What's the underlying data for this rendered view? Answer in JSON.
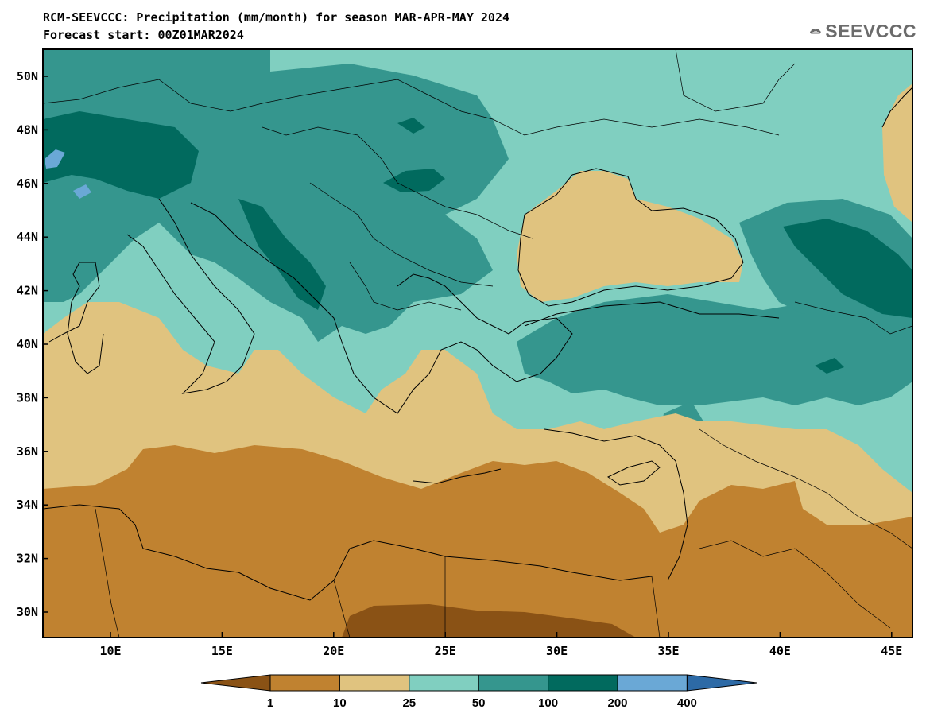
{
  "header": {
    "title_line1": "RCM-SEEVCCC: Precipitation (mm/month) for season MAR-APR-MAY 2024",
    "title_line2": "Forecast start: 00Z01MAR2024",
    "logo_text": "SEEVCCC"
  },
  "axes": {
    "lat_labels": [
      "50N",
      "48N",
      "46N",
      "44N",
      "42N",
      "40N",
      "38N",
      "36N",
      "34N",
      "32N",
      "30N"
    ],
    "lon_labels": [
      "10E",
      "15E",
      "20E",
      "25E",
      "30E",
      "35E",
      "40E",
      "45E"
    ]
  },
  "legend": {
    "levels": [
      "1",
      "10",
      "25",
      "50",
      "100",
      "200",
      "400"
    ],
    "colors": [
      "#8a5215",
      "#c08230",
      "#e0c37f",
      "#80cfc0",
      "#35968e",
      "#016a5e",
      "#6aa8d6",
      "#2d6aa6"
    ]
  }
}
